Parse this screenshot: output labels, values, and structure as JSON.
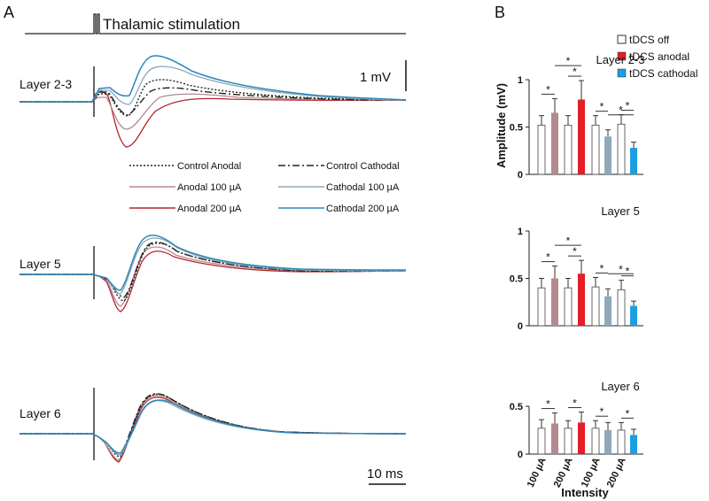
{
  "panel_a": {
    "label": "A",
    "stimulus_label": "Thalamic stimulation",
    "amplitude_scale": "1 mV",
    "time_scale": "10 ms",
    "layers": [
      "Layer 2-3",
      "Layer 5",
      "Layer 6"
    ],
    "legend": [
      {
        "name": "Control Anodal",
        "color": "#222222",
        "dash": "dotted"
      },
      {
        "name": "Control Cathodal",
        "color": "#222222",
        "dash": "dashdot"
      },
      {
        "name": "Anodal 100 µA",
        "color": "#b58a8e",
        "dash": "solid"
      },
      {
        "name": "Cathodal 100 µA",
        "color": "#8fa9b8",
        "dash": "solid"
      },
      {
        "name": "Anodal 200 µA",
        "color": "#b3262c",
        "dash": "solid"
      },
      {
        "name": "Cathodal 200 µA",
        "color": "#2b88b8",
        "dash": "solid"
      }
    ]
  },
  "chart_data": {
    "type": "bar",
    "panel_label": "B",
    "xlabel": "Intensity",
    "ylabel": "Amplitude (mV)",
    "categories": [
      "100 µA",
      "200 µA",
      "100 µA",
      "200 µA"
    ],
    "legend": [
      {
        "name": "tDCS off",
        "color": "#ffffff"
      },
      {
        "name": "tDCS anodal",
        "color": "#e31e24"
      },
      {
        "name": "tDCS cathodal",
        "color": "#1a9fe0"
      }
    ],
    "colors": {
      "off": "#ffffff",
      "anodal_100": "#b58a8e",
      "anodal_200": "#e31e24",
      "cathodal_100": "#8fa9b8",
      "cathodal_200": "#1a9fe0"
    },
    "subplots": [
      {
        "title": "Layer 2-3",
        "ylim": [
          0,
          1
        ],
        "yticks": [
          "0",
          "0.5",
          "1"
        ],
        "bars": [
          {
            "cond": "off",
            "value": 0.52,
            "err": 0.1
          },
          {
            "cond": "anodal_100",
            "value": 0.65,
            "err": 0.15
          },
          {
            "cond": "off",
            "value": 0.52,
            "err": 0.1
          },
          {
            "cond": "anodal_200",
            "value": 0.79,
            "err": 0.2
          },
          {
            "cond": "off",
            "value": 0.52,
            "err": 0.1
          },
          {
            "cond": "cathodal_100",
            "value": 0.4,
            "err": 0.07
          },
          {
            "cond": "off",
            "value": 0.53,
            "err": 0.1
          },
          {
            "cond": "cathodal_200",
            "value": 0.28,
            "err": 0.06
          }
        ]
      },
      {
        "title": "Layer 5",
        "ylim": [
          0,
          1
        ],
        "yticks": [
          "0",
          "0.5",
          "1"
        ],
        "bars": [
          {
            "cond": "off",
            "value": 0.4,
            "err": 0.1
          },
          {
            "cond": "anodal_100",
            "value": 0.5,
            "err": 0.13
          },
          {
            "cond": "off",
            "value": 0.4,
            "err": 0.1
          },
          {
            "cond": "anodal_200",
            "value": 0.55,
            "err": 0.14
          },
          {
            "cond": "off",
            "value": 0.41,
            "err": 0.1
          },
          {
            "cond": "cathodal_100",
            "value": 0.31,
            "err": 0.08
          },
          {
            "cond": "off",
            "value": 0.38,
            "err": 0.1
          },
          {
            "cond": "cathodal_200",
            "value": 0.21,
            "err": 0.05
          }
        ]
      },
      {
        "title": "Layer 6",
        "ylim": [
          0,
          0.5
        ],
        "yticks": [
          "0",
          "0.5"
        ],
        "bars": [
          {
            "cond": "off",
            "value": 0.27,
            "err": 0.09
          },
          {
            "cond": "anodal_100",
            "value": 0.32,
            "err": 0.11
          },
          {
            "cond": "off",
            "value": 0.27,
            "err": 0.08
          },
          {
            "cond": "anodal_200",
            "value": 0.33,
            "err": 0.11
          },
          {
            "cond": "off",
            "value": 0.27,
            "err": 0.08
          },
          {
            "cond": "cathodal_100",
            "value": 0.25,
            "err": 0.08
          },
          {
            "cond": "off",
            "value": 0.25,
            "err": 0.08
          },
          {
            "cond": "cathodal_200",
            "value": 0.2,
            "err": 0.06
          }
        ]
      }
    ],
    "significance_marker": "*"
  }
}
